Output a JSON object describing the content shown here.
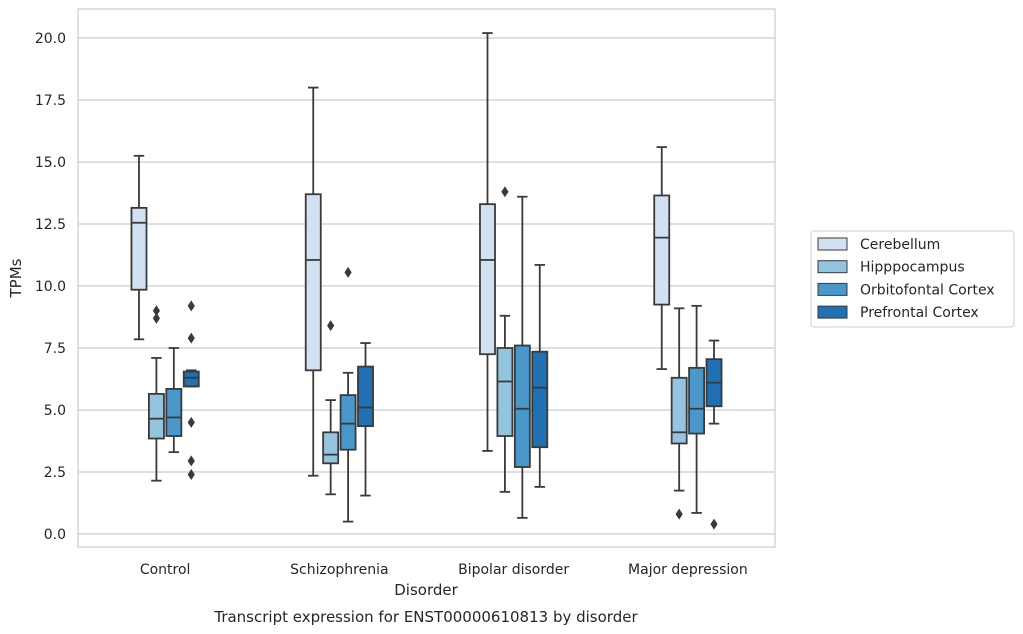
{
  "chart_data": {
    "type": "box",
    "caption": "Transcript expression for ENST00000610813 by disorder",
    "xlabel": "Disorder",
    "ylabel": "TPMs",
    "ylim": [
      -0.5,
      21.2
    ],
    "yticks": [
      0.0,
      2.5,
      5.0,
      7.5,
      10.0,
      12.5,
      15.0,
      17.5,
      20.0
    ],
    "ytick_labels": [
      "0.0",
      "2.5",
      "5.0",
      "7.5",
      "10.0",
      "12.5",
      "15.0",
      "17.5",
      "20.0"
    ],
    "grid": true,
    "legend_position": "right",
    "categories": [
      "Control",
      "Schizophrenia",
      "Bipolar disorder",
      "Major depression"
    ],
    "series": [
      {
        "name": "Cerebellum",
        "color": "#d0e1f2",
        "boxes": [
          {
            "whislo": 7.85,
            "q1": 9.85,
            "med": 12.55,
            "q3": 13.15,
            "whishi": 15.25,
            "fliers": []
          },
          {
            "whislo": 2.35,
            "q1": 6.6,
            "med": 11.05,
            "q3": 13.7,
            "whishi": 18.0,
            "fliers": []
          },
          {
            "whislo": 3.35,
            "q1": 7.25,
            "med": 11.05,
            "q3": 13.3,
            "whishi": 20.2,
            "fliers": []
          },
          {
            "whislo": 6.65,
            "q1": 9.25,
            "med": 11.95,
            "q3": 13.65,
            "whishi": 15.6,
            "fliers": []
          }
        ]
      },
      {
        "name": "Hipppocampus",
        "color": "#94c4df",
        "boxes": [
          {
            "whislo": 2.15,
            "q1": 3.85,
            "med": 4.65,
            "q3": 5.65,
            "whishi": 7.1,
            "fliers": [
              9.0,
              8.7
            ]
          },
          {
            "whislo": 1.6,
            "q1": 2.85,
            "med": 3.2,
            "q3": 4.1,
            "whishi": 5.4,
            "fliers": [
              8.4
            ]
          },
          {
            "whislo": 1.7,
            "q1": 3.95,
            "med": 6.15,
            "q3": 7.5,
            "whishi": 8.8,
            "fliers": [
              13.8
            ]
          },
          {
            "whislo": 1.75,
            "q1": 3.65,
            "med": 4.1,
            "q3": 6.3,
            "whishi": 9.1,
            "fliers": [
              0.8
            ]
          }
        ]
      },
      {
        "name": "Orbitofontal Cortex",
        "color": "#4a98c9",
        "boxes": [
          {
            "whislo": 3.3,
            "q1": 3.95,
            "med": 4.7,
            "q3": 5.85,
            "whishi": 7.5,
            "fliers": []
          },
          {
            "whislo": 0.5,
            "q1": 3.4,
            "med": 4.45,
            "q3": 5.6,
            "whishi": 6.5,
            "fliers": [
              10.55
            ]
          },
          {
            "whislo": 0.65,
            "q1": 2.7,
            "med": 5.05,
            "q3": 7.6,
            "whishi": 13.6,
            "fliers": []
          },
          {
            "whislo": 0.85,
            "q1": 4.05,
            "med": 5.05,
            "q3": 6.7,
            "whishi": 9.2,
            "fliers": []
          }
        ]
      },
      {
        "name": "Prefrontal Cortex",
        "color": "#2070b4",
        "boxes": [
          {
            "whislo": 5.95,
            "q1": 5.95,
            "med": 6.3,
            "q3": 6.55,
            "whishi": 6.6,
            "fliers": [
              9.2,
              7.9,
              4.5,
              2.95,
              2.4
            ]
          },
          {
            "whislo": 1.55,
            "q1": 4.35,
            "med": 5.1,
            "q3": 6.75,
            "whishi": 7.7,
            "fliers": []
          },
          {
            "whislo": 1.9,
            "q1": 3.5,
            "med": 5.9,
            "q3": 7.35,
            "whishi": 10.85,
            "fliers": []
          },
          {
            "whislo": 4.45,
            "q1": 5.15,
            "med": 6.1,
            "q3": 7.05,
            "whishi": 7.8,
            "fliers": [
              0.4
            ]
          }
        ]
      }
    ]
  }
}
